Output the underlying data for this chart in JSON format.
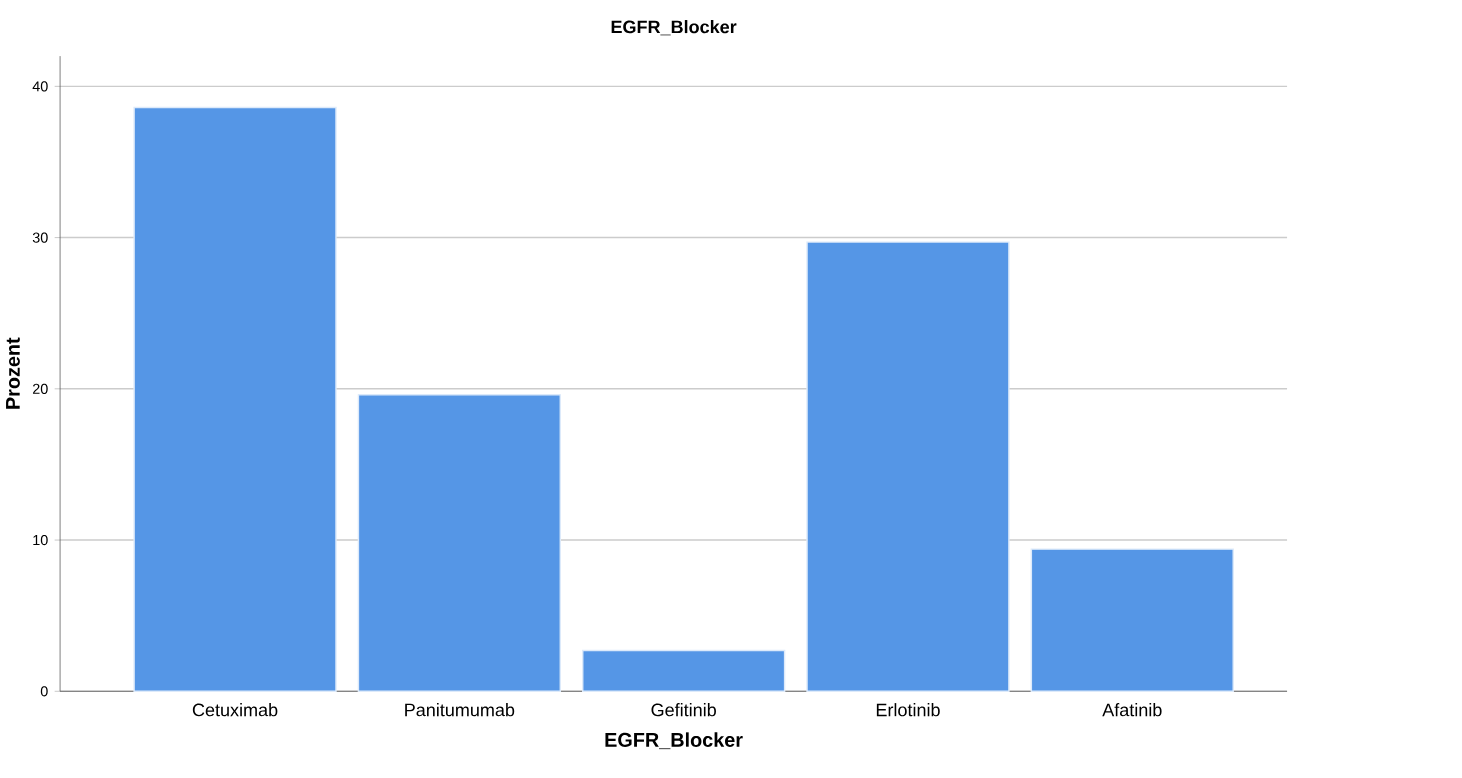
{
  "chart_data": {
    "type": "bar",
    "title": "EGFR_Blocker",
    "xlabel": "EGFR_Blocker",
    "ylabel": "Prozent",
    "categories": [
      "Cetuximab",
      "Panitumumab",
      "Gefitinib",
      "Erlotinib",
      "Afatinib"
    ],
    "values": [
      38.6,
      19.6,
      2.7,
      29.7,
      9.4
    ],
    "color": "#5596e6",
    "ylim": [
      0,
      42
    ],
    "yticks": [
      0,
      10,
      20,
      30,
      40
    ],
    "grid": "y"
  }
}
